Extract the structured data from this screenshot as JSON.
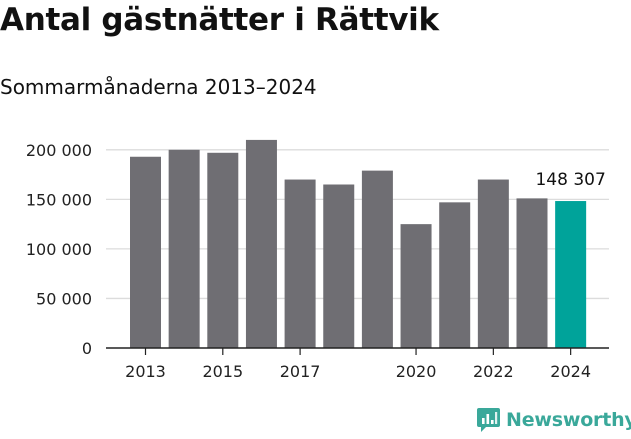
{
  "chart_data": {
    "type": "bar",
    "title": "Antal gästnätter i Rättvik",
    "subtitle": "Sommarmånaderna 2013–2024",
    "categories": [
      "2013",
      "2014",
      "2015",
      "2016",
      "2017",
      "2018",
      "2019",
      "2020",
      "2021",
      "2022",
      "2023",
      "2024"
    ],
    "values": [
      193000,
      200000,
      197000,
      210000,
      170000,
      165000,
      179000,
      125000,
      147000,
      170000,
      151000,
      148307
    ],
    "x_tick_labels": [
      "2013",
      "2015",
      "2017",
      "2020",
      "2022",
      "2024"
    ],
    "y_ticks": [
      0,
      50000,
      100000,
      150000,
      200000
    ],
    "y_tick_labels": [
      "0",
      "50 000",
      "100 000",
      "150 000",
      "200 000"
    ],
    "ylim": [
      0,
      220000
    ],
    "grid": true,
    "highlight_index": 11,
    "highlight_label": "148 307",
    "colors": {
      "bar": "#6f6e73",
      "highlight": "#00a39a",
      "grid": "#dcdcdc",
      "axis": "#222222"
    }
  },
  "brand": {
    "name": "Newsworthy",
    "logo_icon": "bar-chart-badge-icon",
    "color": "#3aa89a"
  }
}
